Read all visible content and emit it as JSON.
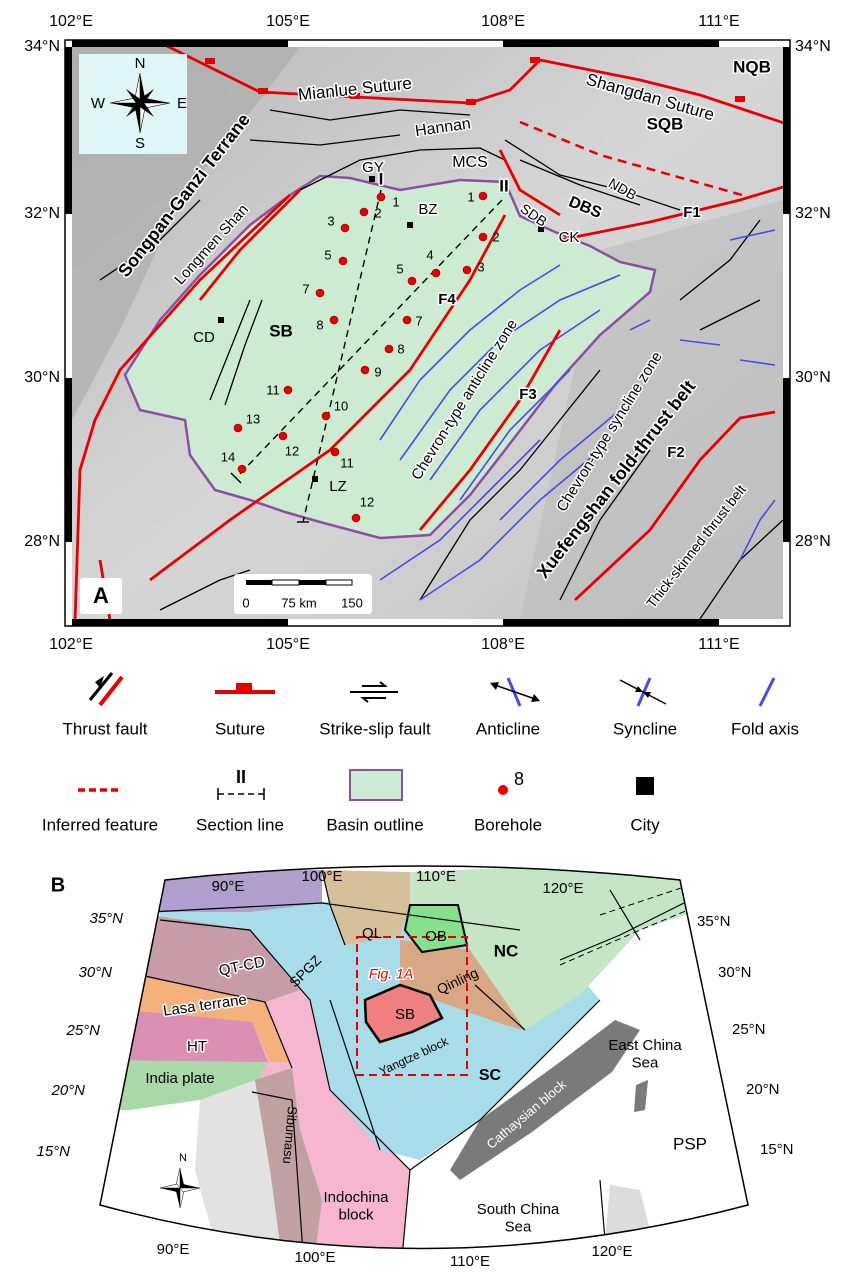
{
  "panel_a": {
    "label": "A",
    "lon_labels": [
      "102°E",
      "105°E",
      "108°E",
      "111°E"
    ],
    "lat_labels": [
      "34°N",
      "32°N",
      "30°N",
      "28°N"
    ],
    "compass": [
      "N",
      "W",
      "E",
      "S"
    ],
    "places": [
      "Mianlue Suture",
      "Shangdan Suture",
      "NQB",
      "SQB",
      "Hannan",
      "MCS",
      "GY",
      "BZ",
      "DBS",
      "NDB",
      "SDB",
      "CK",
      "F1",
      "F4",
      "F3",
      "F2",
      "Songpan-Ganzi Terrane",
      "Longmen Shan",
      "CD",
      "SB",
      "LZ",
      "Chevron-type anticline zone",
      "Chevron-type syncline zone",
      "Xuefengshan fold-thrust belt",
      "Thick-skinned thrust belt"
    ],
    "sections": [
      "I",
      "II"
    ],
    "boreholes": [
      "1",
      "2",
      "3",
      "5",
      "7",
      "8",
      "1",
      "2",
      "3",
      "4",
      "5",
      "7",
      "8",
      "9",
      "10",
      "11",
      "12",
      "13",
      "14",
      "11",
      "12"
    ],
    "scale": [
      "0",
      "75 km",
      "150"
    ]
  },
  "legend": {
    "items": [
      "Thrust fault",
      "Suture",
      "Strike-slip fault",
      "Anticline",
      "Syncline",
      "Fold axis",
      "Inferred feature",
      "Section line",
      "Basin outline",
      "Borehole",
      "City"
    ],
    "section_symbol": "II",
    "borehole_symbol": "8"
  },
  "panel_b": {
    "label": "B",
    "lon_labels": [
      "90°E",
      "100°E",
      "110°E",
      "120°E"
    ],
    "lat_labels": [
      "35°N",
      "30°N",
      "25°N",
      "20°N",
      "15°N"
    ],
    "places": [
      "QL",
      "OB",
      "NC",
      "QT-CD",
      "SPGZ",
      "Fig. 1A",
      "Qinling",
      "Lasa terrane",
      "SB",
      "HT",
      "India plate",
      "Yangtze block",
      "SC",
      "Cathaysian block",
      "Sibumasu",
      "PSP"
    ],
    "multiline": [
      [
        "East China",
        "Sea"
      ],
      [
        "Indochina",
        "block"
      ],
      [
        "South China",
        "Sea"
      ]
    ],
    "compass": "N"
  }
}
